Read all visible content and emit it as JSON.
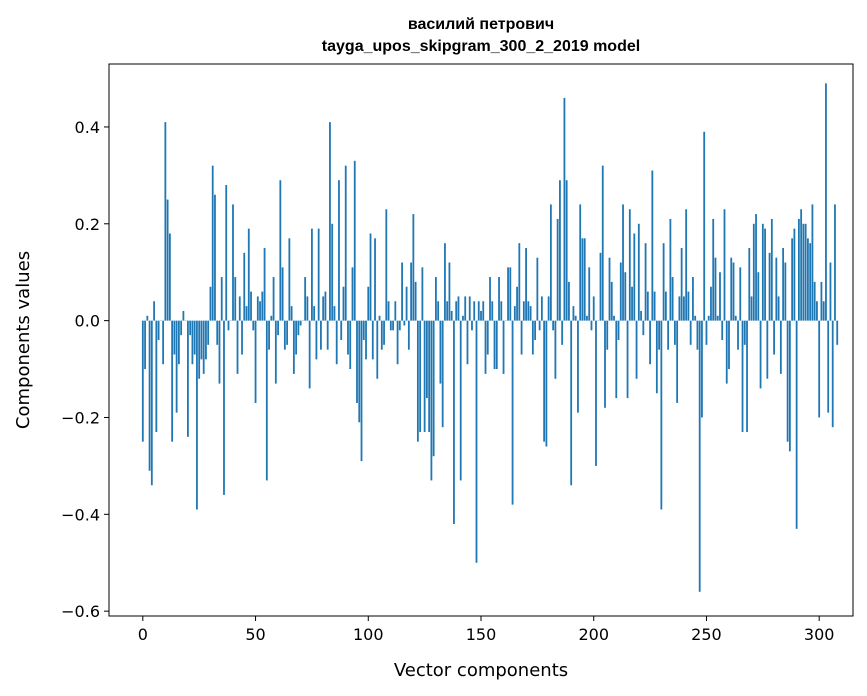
{
  "chart_data": {
    "type": "bar",
    "title": [
      "василий петрович",
      "tayga_upos_skipgram_300_2_2019 model"
    ],
    "xlabel": "Vector components",
    "ylabel": "Components values",
    "xlim": [
      -15,
      315
    ],
    "ylim": [
      -0.61,
      0.53
    ],
    "xticks": [
      0,
      50,
      100,
      150,
      200,
      250,
      300
    ],
    "xtick_labels": [
      "0",
      "50",
      "100",
      "150",
      "200",
      "250",
      "300"
    ],
    "yticks": [
      -0.6,
      -0.4,
      -0.2,
      0.0,
      0.2,
      0.4
    ],
    "ytick_labels": [
      "−0.6",
      "−0.4",
      "−0.2",
      "0.0",
      "0.2",
      "0.4"
    ],
    "bar_color": "#1f77b4",
    "grid": false,
    "values": [
      -0.25,
      -0.1,
      0.01,
      -0.31,
      -0.34,
      0.04,
      -0.23,
      -0.04,
      0.0,
      -0.09,
      0.41,
      0.25,
      0.18,
      -0.25,
      -0.07,
      -0.19,
      -0.09,
      -0.03,
      0.02,
      0.0,
      -0.24,
      -0.03,
      -0.09,
      -0.07,
      -0.39,
      -0.12,
      -0.08,
      -0.11,
      -0.08,
      -0.05,
      0.07,
      0.32,
      0.26,
      -0.05,
      -0.13,
      0.09,
      -0.36,
      0.28,
      -0.02,
      0.0,
      0.24,
      0.09,
      -0.11,
      0.05,
      -0.07,
      0.14,
      0.03,
      0.19,
      0.06,
      -0.02,
      -0.17,
      0.05,
      0.04,
      0.06,
      0.15,
      -0.33,
      -0.06,
      0.01,
      0.09,
      -0.13,
      -0.03,
      0.29,
      0.11,
      -0.06,
      -0.05,
      0.17,
      0.03,
      -0.11,
      -0.07,
      -0.03,
      -0.01,
      0.0,
      0.09,
      0.05,
      -0.14,
      0.19,
      0.03,
      -0.08,
      0.19,
      -0.06,
      0.05,
      0.06,
      -0.06,
      0.41,
      0.2,
      0.03,
      -0.09,
      0.29,
      -0.04,
      0.07,
      0.32,
      -0.07,
      -0.1,
      0.11,
      0.33,
      -0.17,
      -0.21,
      -0.29,
      -0.04,
      -0.08,
      0.07,
      0.18,
      -0.08,
      0.17,
      -0.12,
      0.01,
      -0.06,
      -0.05,
      0.23,
      0.04,
      -0.02,
      -0.02,
      0.04,
      -0.09,
      -0.02,
      0.12,
      -0.01,
      0.07,
      -0.06,
      0.12,
      0.22,
      0.08,
      -0.25,
      -0.23,
      0.11,
      -0.23,
      -0.16,
      -0.23,
      -0.33,
      -0.28,
      0.09,
      0.04,
      -0.13,
      -0.22,
      0.16,
      0.04,
      0.12,
      0.02,
      -0.42,
      0.04,
      0.05,
      -0.33,
      0.01,
      0.05,
      -0.09,
      0.05,
      -0.02,
      0.04,
      -0.5,
      0.04,
      0.02,
      0.04,
      -0.11,
      -0.07,
      0.09,
      0.04,
      -0.1,
      -0.1,
      0.09,
      0.04,
      -0.11,
      0.0,
      0.11,
      0.11,
      -0.38,
      0.03,
      0.07,
      0.16,
      -0.07,
      0.04,
      0.15,
      0.04,
      0.03,
      -0.07,
      -0.04,
      0.13,
      -0.02,
      0.05,
      -0.25,
      -0.26,
      0.05,
      0.24,
      -0.02,
      -0.12,
      0.21,
      0.29,
      -0.05,
      0.46,
      0.29,
      0.08,
      -0.34,
      0.03,
      0.01,
      -0.19,
      0.24,
      0.17,
      0.17,
      0.01,
      0.11,
      -0.02,
      0.05,
      -0.3,
      0.0,
      0.14,
      0.32,
      -0.18,
      -0.06,
      0.13,
      0.08,
      0.01,
      -0.16,
      -0.04,
      0.12,
      0.24,
      0.1,
      -0.16,
      0.23,
      0.07,
      0.18,
      -0.12,
      0.2,
      0.02,
      -0.03,
      0.16,
      0.06,
      -0.09,
      0.31,
      0.06,
      -0.15,
      -0.06,
      -0.39,
      0.16,
      0.06,
      -0.06,
      0.21,
      0.09,
      -0.05,
      -0.17,
      0.05,
      0.15,
      0.05,
      0.23,
      0.06,
      -0.05,
      0.09,
      0.01,
      -0.06,
      -0.56,
      -0.2,
      0.39,
      -0.05,
      0.01,
      0.07,
      0.21,
      0.13,
      0.01,
      0.1,
      -0.04,
      0.23,
      -0.13,
      -0.1,
      0.13,
      0.12,
      0.01,
      -0.06,
      0.11,
      -0.23,
      -0.05,
      -0.23,
      0.15,
      0.05,
      0.2,
      0.22,
      0.1,
      -0.14,
      0.2,
      0.19,
      -0.12,
      0.14,
      0.21,
      -0.07,
      0.13,
      0.05,
      -0.11,
      0.15,
      0.12,
      -0.25,
      -0.27,
      0.17,
      0.19,
      -0.43,
      0.21,
      0.23,
      0.2,
      0.2,
      0.17,
      0.16,
      0.24,
      0.08,
      0.04,
      -0.2,
      0.08,
      0.04,
      0.49,
      -0.19,
      0.12,
      -0.22,
      0.24,
      -0.05
    ]
  }
}
